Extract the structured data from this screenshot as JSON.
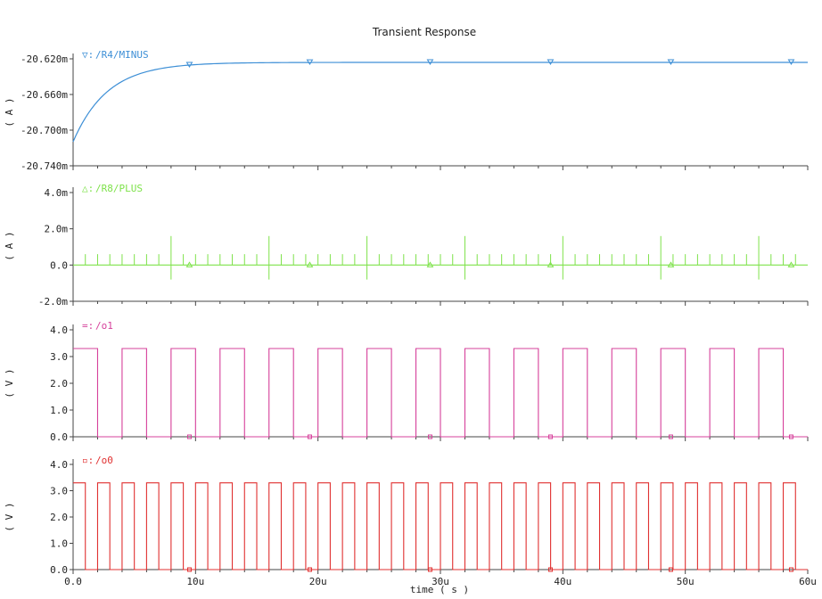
{
  "title": "Transient Response",
  "xlabel": "time ( s )",
  "chart_data": {
    "type": "line",
    "title": "Transient Response",
    "xlabel": "time ( s )",
    "x_tick_labels": [
      "0.0",
      "10u",
      "20u",
      "30u",
      "40u",
      "50u",
      "60u"
    ],
    "xlim": [
      0,
      60
    ],
    "x_unit": "us",
    "panels": [
      {
        "series_name": "/R4/MINUS",
        "legend_marker": "▽:",
        "color": "#3d8fd6",
        "ylabel": "( A )",
        "y_unit": "mA",
        "ylim": [
          -20.74,
          -20.62
        ],
        "y_tick_values": [
          -20.62,
          -20.66,
          -20.7,
          -20.74
        ],
        "y_tick_labels": [
          "-20.620m",
          "-20.660m",
          "-20.700m",
          "-20.740m"
        ],
        "waveform": "exponential settling",
        "start_value": -20.713,
        "final_value": -20.624,
        "time_constant_us": 2.8
      },
      {
        "series_name": "/R8/PLUS",
        "legend_marker": "△:",
        "color": "#7ee24a",
        "ylabel": "( A )",
        "y_unit": "mA",
        "ylim": [
          -2.0,
          4.0
        ],
        "y_tick_values": [
          4.0,
          2.0,
          0.0,
          -2.0
        ],
        "y_tick_labels": [
          "4.0m",
          "2.0m",
          "0.0",
          "-2.0m"
        ],
        "waveform": "switching current spikes about 0",
        "baseline": 0.0,
        "spike_period_us": 1.0,
        "spike_peak_small": 0.6,
        "spike_peak_large": 1.6,
        "spike_trough_large": -0.8
      },
      {
        "series_name": "/o1",
        "legend_marker": "=:",
        "color": "#d6409b",
        "ylabel": "( V )",
        "y_unit": "V",
        "ylim": [
          0.0,
          4.0
        ],
        "y_tick_values": [
          4.0,
          3.0,
          2.0,
          1.0,
          0.0
        ],
        "y_tick_labels": [
          "4.0",
          "3.0",
          "2.0",
          "1.0",
          "0.0"
        ],
        "waveform": "square",
        "high": 3.3,
        "low": 0.0,
        "period_us": 4.0,
        "duty": 0.5
      },
      {
        "series_name": "/o0",
        "legend_marker": "▫:",
        "color": "#e03030",
        "ylabel": "( V )",
        "y_unit": "V",
        "ylim": [
          0.0,
          4.0
        ],
        "y_tick_values": [
          4.0,
          3.0,
          2.0,
          1.0,
          0.0
        ],
        "y_tick_labels": [
          "4.0",
          "3.0",
          "2.0",
          "1.0",
          "0.0"
        ],
        "waveform": "square",
        "high": 3.3,
        "low": 0.0,
        "period_us": 2.0,
        "duty": 0.5
      }
    ]
  }
}
